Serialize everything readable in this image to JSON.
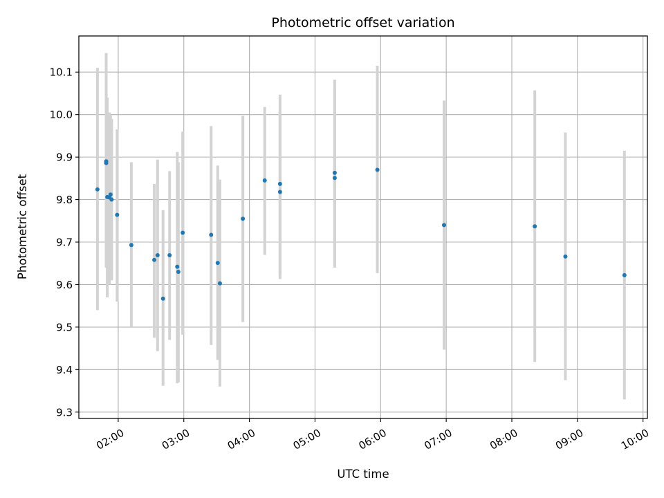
{
  "chart_data": {
    "type": "scatter",
    "title": "Photometric offset variation",
    "xlabel": "UTC time",
    "ylabel": "Photometric offset",
    "x_is_time": true,
    "xlim": [
      "01:24",
      "10:04"
    ],
    "ylim": [
      9.285,
      10.185
    ],
    "yticks": [
      9.3,
      9.4,
      9.5,
      9.6,
      9.7,
      9.8,
      9.9,
      10.0,
      10.1
    ],
    "ytick_labels": [
      "9.3",
      "9.4",
      "9.5",
      "9.6",
      "9.7",
      "9.8",
      "9.9",
      "10.0",
      "10.1"
    ],
    "xticks": [
      "02:00",
      "03:00",
      "04:00",
      "05:00",
      "06:00",
      "07:00",
      "08:00",
      "09:00",
      "10:00"
    ],
    "grid": true,
    "marker_color": "#1f77b4",
    "errorbar_color": "#d3d3d3",
    "points": [
      {
        "x": "01:41",
        "y": 9.824,
        "lo": 9.54,
        "hi": 10.11
      },
      {
        "x": "01:49",
        "y": 9.89,
        "lo": 9.64,
        "hi": 10.145
      },
      {
        "x": "01:49",
        "y": 9.886,
        "lo": 9.66,
        "hi": 10.0
      },
      {
        "x": "01:50",
        "y": 9.806,
        "lo": 9.57,
        "hi": 10.04
      },
      {
        "x": "01:52",
        "y": 9.805,
        "lo": 9.6,
        "hi": 10.005
      },
      {
        "x": "01:53",
        "y": 9.812,
        "lo": 9.615,
        "hi": 10.0
      },
      {
        "x": "01:54",
        "y": 9.8,
        "lo": 9.61,
        "hi": 9.99
      },
      {
        "x": "01:59",
        "y": 9.764,
        "lo": 9.56,
        "hi": 9.965
      },
      {
        "x": "02:12",
        "y": 9.693,
        "lo": 9.5,
        "hi": 9.888
      },
      {
        "x": "02:33",
        "y": 9.658,
        "lo": 9.475,
        "hi": 9.837
      },
      {
        "x": "02:36",
        "y": 9.669,
        "lo": 9.443,
        "hi": 9.894
      },
      {
        "x": "02:41",
        "y": 9.567,
        "lo": 9.362,
        "hi": 9.775
      },
      {
        "x": "02:47",
        "y": 9.669,
        "lo": 9.47,
        "hi": 9.867
      },
      {
        "x": "02:54",
        "y": 9.642,
        "lo": 9.368,
        "hi": 9.912
      },
      {
        "x": "02:55",
        "y": 9.63,
        "lo": 9.37,
        "hi": 9.888
      },
      {
        "x": "02:59",
        "y": 9.722,
        "lo": 9.482,
        "hi": 9.96
      },
      {
        "x": "03:25",
        "y": 9.717,
        "lo": 9.458,
        "hi": 9.973
      },
      {
        "x": "03:31",
        "y": 9.651,
        "lo": 9.423,
        "hi": 9.88
      },
      {
        "x": "03:33",
        "y": 9.603,
        "lo": 9.36,
        "hi": 9.847
      },
      {
        "x": "03:54",
        "y": 9.755,
        "lo": 9.512,
        "hi": 9.997
      },
      {
        "x": "04:14",
        "y": 9.845,
        "lo": 9.67,
        "hi": 10.018
      },
      {
        "x": "04:28",
        "y": 9.837,
        "lo": 9.613,
        "hi": 10.047
      },
      {
        "x": "04:28",
        "y": 9.818,
        "lo": 9.625,
        "hi": 10.005
      },
      {
        "x": "05:18",
        "y": 9.863,
        "lo": 9.642,
        "hi": 10.082
      },
      {
        "x": "05:18",
        "y": 9.851,
        "lo": 9.64,
        "hi": 10.06
      },
      {
        "x": "05:57",
        "y": 9.87,
        "lo": 9.627,
        "hi": 10.115
      },
      {
        "x": "06:58",
        "y": 9.74,
        "lo": 9.447,
        "hi": 10.033
      },
      {
        "x": "08:21",
        "y": 9.737,
        "lo": 9.418,
        "hi": 10.057
      },
      {
        "x": "08:49",
        "y": 9.666,
        "lo": 9.375,
        "hi": 9.958
      },
      {
        "x": "09:43",
        "y": 9.622,
        "lo": 9.33,
        "hi": 9.915
      }
    ]
  }
}
